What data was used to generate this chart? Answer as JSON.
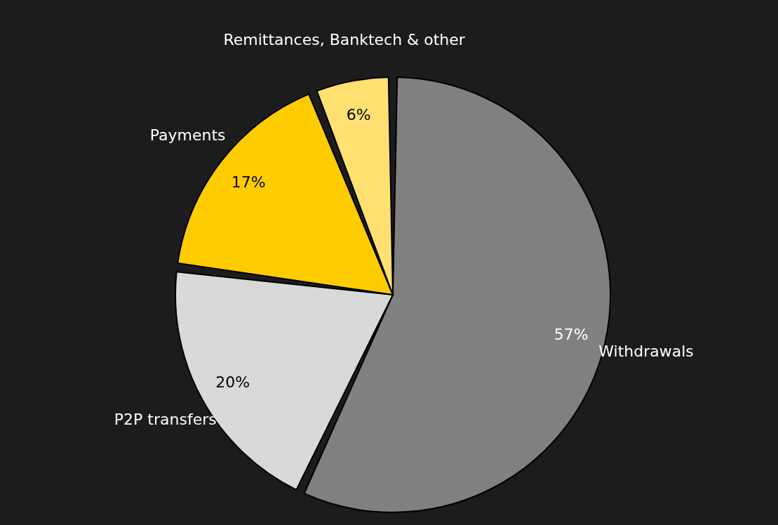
{
  "chart_data": {
    "type": "pie",
    "categories": [
      "Withdrawals",
      "P2P transfers",
      "Payments",
      "Remittances, Banktech & other"
    ],
    "values": [
      57,
      20,
      17,
      6
    ],
    "colors": [
      "#808080",
      "#d9d9d9",
      "#ffcc00",
      "#ffe070"
    ],
    "value_labels": [
      "57%",
      "20%",
      "17%",
      "6%"
    ]
  }
}
